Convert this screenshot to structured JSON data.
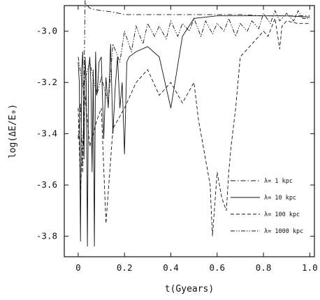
{
  "chart_data": {
    "type": "line",
    "title": "",
    "xlabel": "t(Gyears)",
    "ylabel": "log(ΔE/E₀)",
    "xlim": [
      -0.06,
      1.02
    ],
    "ylim": [
      -3.88,
      -2.9
    ],
    "x_ticks": [
      0,
      0.2,
      0.4,
      0.6,
      0.8,
      1.0
    ],
    "x_tick_labels": [
      "0",
      "0.2",
      "0.4",
      "0.6",
      "0.8",
      "1.0"
    ],
    "y_ticks": [
      -3.8,
      -3.6,
      -3.4,
      -3.2,
      -3.0
    ],
    "y_tick_labels": [
      "-3.8",
      "-3.6",
      "-3.4",
      "-3.2",
      "-3.0"
    ],
    "grid": false,
    "legend_position": "lower-right",
    "series": [
      {
        "name": "λ= 1 kpc",
        "style": "dash-dot",
        "x": [
          0,
          0.01,
          0.02,
          0.025,
          0.03,
          0.035,
          0.04,
          0.05,
          0.07,
          0.1,
          0.15,
          0.2,
          0.3,
          0.4,
          0.5,
          0.6,
          0.7,
          0.8,
          0.9,
          1.0
        ],
        "values": [
          -3.42,
          -3.28,
          -3.55,
          -3.2,
          -2.88,
          -2.9,
          -2.9,
          -2.91,
          -2.915,
          -2.92,
          -2.925,
          -2.935,
          -2.935,
          -2.935,
          -2.935,
          -2.935,
          -2.935,
          -2.94,
          -2.94,
          -2.94
        ]
      },
      {
        "name": "λ= 10 kpc",
        "style": "solid",
        "x": [
          0,
          0.005,
          0.01,
          0.015,
          0.02,
          0.025,
          0.03,
          0.035,
          0.04,
          0.045,
          0.05,
          0.055,
          0.06,
          0.065,
          0.07,
          0.075,
          0.08,
          0.085,
          0.09,
          0.1,
          0.11,
          0.12,
          0.13,
          0.14,
          0.15,
          0.16,
          0.17,
          0.18,
          0.19,
          0.2,
          0.21,
          0.22,
          0.25,
          0.3,
          0.35,
          0.4,
          0.45,
          0.5,
          0.6,
          0.7,
          0.8,
          0.9,
          1.0
        ],
        "values": [
          -3.12,
          -3.2,
          -3.82,
          -3.15,
          -3.08,
          -3.5,
          -3.1,
          -3.2,
          -3.84,
          -3.15,
          -3.1,
          -3.2,
          -3.55,
          -3.15,
          -3.84,
          -3.08,
          -3.25,
          -3.2,
          -3.12,
          -3.1,
          -3.42,
          -3.18,
          -3.3,
          -3.05,
          -3.4,
          -3.22,
          -3.1,
          -3.3,
          -3.2,
          -3.48,
          -3.12,
          -3.1,
          -3.08,
          -3.06,
          -3.1,
          -3.3,
          -3.02,
          -2.95,
          -2.94,
          -2.94,
          -2.94,
          -2.94,
          -2.945
        ]
      },
      {
        "name": "λ= 100 kpc",
        "style": "dashed",
        "x": [
          0.0,
          0.01,
          0.03,
          0.05,
          0.08,
          0.1,
          0.12,
          0.15,
          0.2,
          0.25,
          0.3,
          0.35,
          0.4,
          0.45,
          0.5,
          0.52,
          0.55,
          0.57,
          0.58,
          0.6,
          0.62,
          0.64,
          0.65,
          0.66,
          0.68,
          0.7,
          0.75,
          0.8,
          0.82,
          0.85,
          0.87,
          0.88,
          0.9,
          0.95,
          1.0
        ],
        "values": [
          -3.3,
          -3.62,
          -3.25,
          -3.45,
          -3.35,
          -3.3,
          -3.75,
          -3.38,
          -3.3,
          -3.2,
          -3.15,
          -3.25,
          -3.2,
          -3.28,
          -3.2,
          -3.35,
          -3.5,
          -3.6,
          -3.8,
          -3.55,
          -3.65,
          -3.7,
          -3.55,
          -3.45,
          -3.3,
          -3.1,
          -3.05,
          -3.0,
          -3.02,
          -2.95,
          -3.07,
          -2.98,
          -2.96,
          -2.97,
          -2.97
        ]
      },
      {
        "name": "λ= 1000 kpc",
        "style": "dash-dot-dot",
        "x": [
          0.0,
          0.02,
          0.05,
          0.08,
          0.1,
          0.13,
          0.15,
          0.18,
          0.2,
          0.23,
          0.25,
          0.28,
          0.3,
          0.33,
          0.35,
          0.38,
          0.4,
          0.43,
          0.45,
          0.48,
          0.5,
          0.53,
          0.55,
          0.58,
          0.6,
          0.63,
          0.65,
          0.68,
          0.7,
          0.73,
          0.75,
          0.78,
          0.8,
          0.83,
          0.85,
          0.87,
          0.9,
          0.93,
          0.95,
          0.97,
          1.0
        ],
        "values": [
          -3.1,
          -3.22,
          -3.12,
          -3.25,
          -3.18,
          -3.28,
          -3.05,
          -3.12,
          -3.0,
          -3.08,
          -2.98,
          -3.05,
          -2.97,
          -3.02,
          -2.98,
          -3.03,
          -2.96,
          -3.02,
          -2.97,
          -3.0,
          -2.95,
          -3.02,
          -2.96,
          -3.01,
          -2.97,
          -3.0,
          -2.95,
          -3.02,
          -2.97,
          -3.0,
          -2.96,
          -2.99,
          -2.93,
          -2.97,
          -2.92,
          -2.96,
          -2.93,
          -2.96,
          -2.92,
          -2.95,
          -2.95
        ]
      }
    ]
  }
}
